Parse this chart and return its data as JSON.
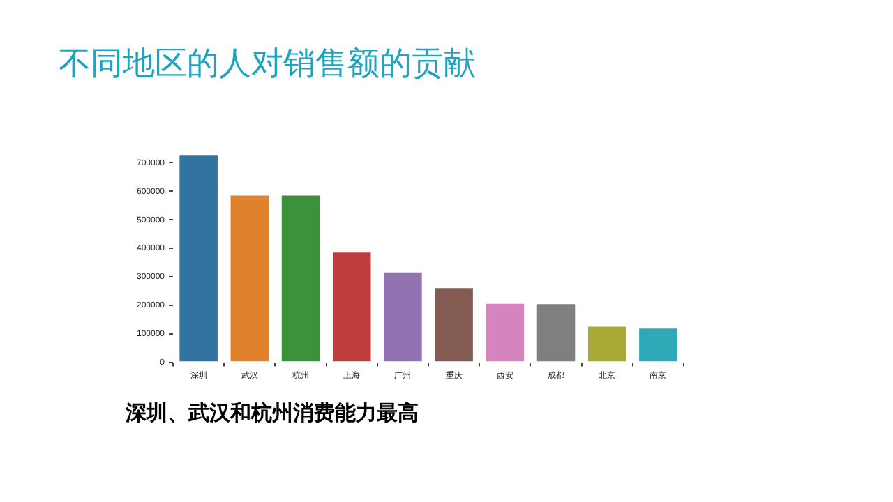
{
  "chart_data": {
    "type": "bar",
    "title": "不同地区的人对销售额的贡献",
    "categories": [
      "深圳",
      "武汉",
      "杭州",
      "上海",
      "广州",
      "重庆",
      "西安",
      "成都",
      "北京",
      "南京"
    ],
    "values": [
      730000,
      590000,
      590000,
      390000,
      320000,
      265000,
      210000,
      209000,
      130000,
      123000
    ],
    "colors": [
      "#3274a1",
      "#e1812c",
      "#3a923a",
      "#c03d3e",
      "#9372b2",
      "#845b53",
      "#d684bd",
      "#7f7f7f",
      "#a9aa35",
      "#2ea9b8"
    ],
    "ylim": [
      0,
      730000
    ],
    "yticks": [
      0,
      100000,
      200000,
      300000,
      400000,
      500000,
      600000,
      700000
    ],
    "grid": false,
    "annotations": [
      "深圳、武汉和杭州消费能力最高"
    ]
  }
}
